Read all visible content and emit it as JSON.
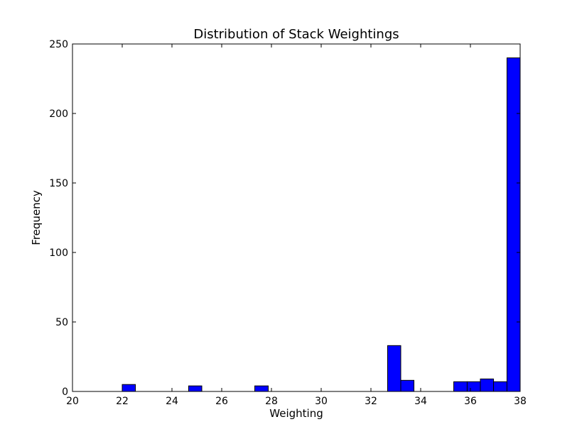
{
  "chart_data": {
    "type": "bar",
    "title": "Distribution of Stack Weightings",
    "xlabel": "Weighting",
    "ylabel": "Frequency",
    "xlim": [
      20,
      38
    ],
    "ylim": [
      0,
      250
    ],
    "xticks": [
      20,
      22,
      24,
      26,
      28,
      30,
      32,
      34,
      36,
      38
    ],
    "yticks": [
      0,
      50,
      100,
      150,
      200,
      250
    ],
    "grid": false,
    "legend": "none",
    "bar_color": "#0000ff",
    "bar_edge_color": "#000000",
    "bars": [
      {
        "x0": 22.0,
        "x1": 22.53,
        "value": 5
      },
      {
        "x0": 24.67,
        "x1": 25.2,
        "value": 4
      },
      {
        "x0": 27.33,
        "x1": 27.87,
        "value": 4
      },
      {
        "x0": 32.67,
        "x1": 33.2,
        "value": 33
      },
      {
        "x0": 33.2,
        "x1": 33.73,
        "value": 8
      },
      {
        "x0": 35.33,
        "x1": 35.87,
        "value": 7
      },
      {
        "x0": 35.87,
        "x1": 36.4,
        "value": 7
      },
      {
        "x0": 36.4,
        "x1": 36.93,
        "value": 9
      },
      {
        "x0": 36.93,
        "x1": 37.47,
        "value": 7
      },
      {
        "x0": 37.47,
        "x1": 38.0,
        "value": 240
      }
    ]
  }
}
